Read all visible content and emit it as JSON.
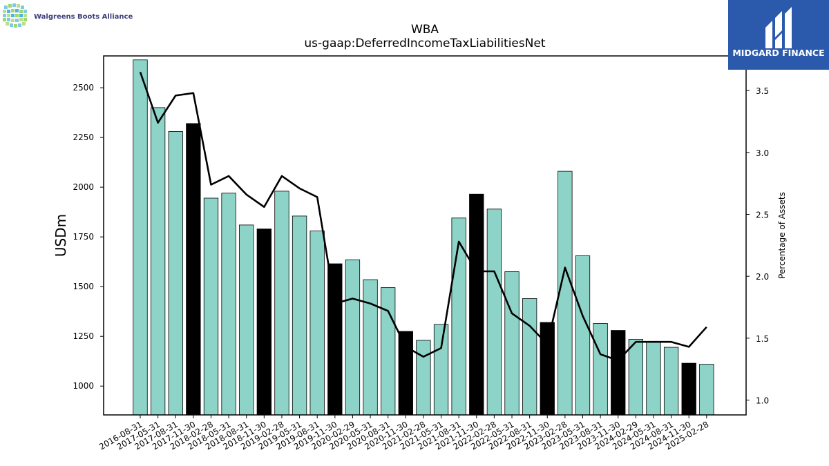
{
  "company_logo": {
    "name": "Walgreens Boots Alliance"
  },
  "brand": {
    "name": "MIDGARD FINANCE",
    "bg_color": "#2b5aad"
  },
  "colors": {
    "bar": "#8dd3c7",
    "bar_highlight": "#000000",
    "line": "#000000"
  },
  "chart_data": {
    "type": "bar",
    "title": "WBA",
    "subtitle": "us-gaap:DeferredIncomeTaxLiabilitiesNet",
    "ylabel": "USDm",
    "y2label": "Percentage of Assets",
    "ylim": [
      855,
      2660
    ],
    "y2lim": [
      0.88,
      3.78
    ],
    "yticks": [
      1000,
      1250,
      1500,
      1750,
      2000,
      2250,
      2500
    ],
    "y2ticks": [
      "1.0",
      "1.5",
      "2.0",
      "2.5",
      "3.0",
      "3.5"
    ],
    "categories": [
      "2016-08-31",
      "2017-05-31",
      "2017-08-31",
      "2017-11-30",
      "2018-02-28",
      "2018-05-31",
      "2018-08-31",
      "2018-11-30",
      "2019-02-28",
      "2019-05-31",
      "2019-08-31",
      "2019-11-30",
      "2020-02-29",
      "2020-05-31",
      "2020-08-31",
      "2020-11-30",
      "2021-02-28",
      "2021-05-31",
      "2021-08-31",
      "2021-11-30",
      "2022-02-28",
      "2022-05-31",
      "2022-08-31",
      "2022-11-30",
      "2023-02-28",
      "2023-05-31",
      "2023-08-31",
      "2023-11-30",
      "2024-02-29",
      "2024-05-31",
      "2024-08-31",
      "2024-11-30",
      "2025-02-28"
    ],
    "series": [
      {
        "type": "bar",
        "values": [
          2640,
          2400,
          2280,
          2320,
          1945,
          1970,
          1810,
          1790,
          1980,
          1855,
          1780,
          1615,
          1635,
          1535,
          1495,
          1275,
          1230,
          1310,
          1845,
          1965,
          1890,
          1575,
          1440,
          1320,
          2080,
          1655,
          1315,
          1280,
          1235,
          1220,
          1195,
          1115,
          1110
        ],
        "highlight": [
          false,
          false,
          false,
          true,
          false,
          false,
          false,
          true,
          false,
          false,
          false,
          true,
          false,
          false,
          false,
          true,
          false,
          false,
          false,
          true,
          false,
          false,
          false,
          true,
          false,
          false,
          false,
          true,
          false,
          false,
          false,
          true,
          false
        ]
      },
      {
        "type": "line",
        "axis": "right",
        "values": [
          3.65,
          3.24,
          3.46,
          3.48,
          2.74,
          2.81,
          2.66,
          2.56,
          2.81,
          2.71,
          2.64,
          1.78,
          1.82,
          1.78,
          1.72,
          1.43,
          1.35,
          1.42,
          2.28,
          2.04,
          2.04,
          1.7,
          1.6,
          1.45,
          2.07,
          1.68,
          1.37,
          1.32,
          1.47,
          1.47,
          1.47,
          1.43,
          1.59
        ]
      }
    ],
    "grid": false
  }
}
